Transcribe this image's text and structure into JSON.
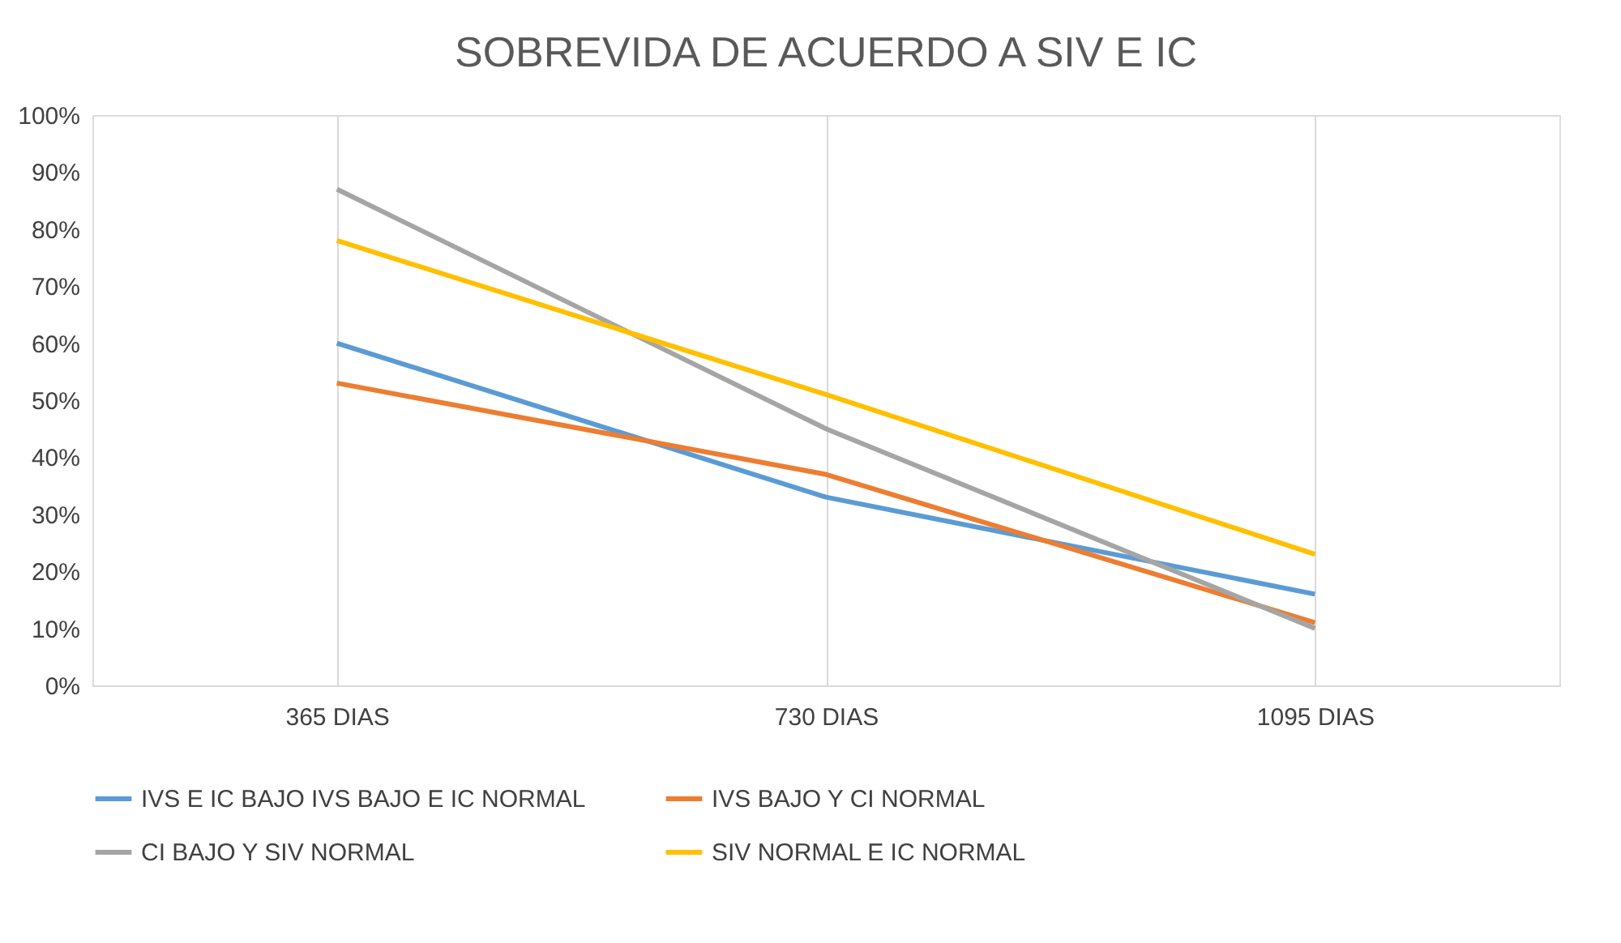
{
  "chart_data": {
    "type": "line",
    "title": "SOBREVIDA DE ACUERDO A SIV E IC",
    "categories": [
      "365 DIAS",
      "730 DIAS",
      "1095 DIAS"
    ],
    "series": [
      {
        "name": "IVS  E  IC BAJO  IVS BAJO E IC NORMAL",
        "color": "#5b9bd5",
        "values": [
          60,
          33,
          16
        ]
      },
      {
        "name": "IVS BAJO Y CI NORMAL",
        "color": "#ed7d31",
        "values": [
          53,
          37,
          11
        ]
      },
      {
        "name": "CI BAJO Y SIV NORMAL",
        "color": "#a5a5a5",
        "values": [
          87,
          45,
          10
        ]
      },
      {
        "name": "SIV NORMAL E IC  NORMAL",
        "color": "#ffc000",
        "values": [
          78,
          51,
          23
        ]
      }
    ],
    "ylim": [
      0,
      100
    ],
    "yticks": [
      {
        "value": 0,
        "label": "0%"
      },
      {
        "value": 10,
        "label": "10%"
      },
      {
        "value": 20,
        "label": "20%"
      },
      {
        "value": 30,
        "label": "30%"
      },
      {
        "value": 40,
        "label": "40%"
      },
      {
        "value": 50,
        "label": "50%"
      },
      {
        "value": 60,
        "label": "60%"
      },
      {
        "value": 70,
        "label": "70%"
      },
      {
        "value": 80,
        "label": "80%"
      },
      {
        "value": 90,
        "label": "90%"
      },
      {
        "value": 100,
        "label": "100%"
      }
    ],
    "grid": "x",
    "legend": "bottom",
    "marker": "none",
    "line_style": "solid"
  }
}
